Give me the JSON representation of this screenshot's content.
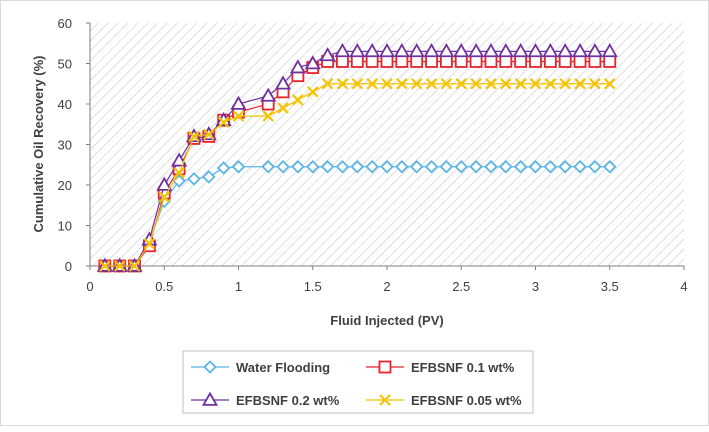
{
  "chart_data": {
    "type": "line",
    "xlabel": "Fluid Injected (PV)",
    "ylabel": "Cumulative Oil Recovery (%)",
    "xlim": [
      0,
      4
    ],
    "ylim": [
      0,
      60
    ],
    "x_ticks": [
      "0",
      "0.5",
      "1",
      "1.5",
      "2",
      "2.5",
      "3",
      "3.5",
      "4"
    ],
    "y_ticks": [
      "0",
      "10",
      "20",
      "30",
      "40",
      "50",
      "60"
    ],
    "grid": "none",
    "plot_background": "diagonal hatch",
    "legend_position": "bottom",
    "series": [
      {
        "name": "Water Flooding",
        "color": "#5ab4e5",
        "marker": "diamond",
        "x": [
          0.1,
          0.2,
          0.3,
          0.4,
          0.5,
          0.6,
          0.7,
          0.8,
          0.9,
          1.0,
          1.2,
          1.3,
          1.4,
          1.5,
          1.6,
          1.7,
          1.8,
          1.9,
          2.0,
          2.1,
          2.2,
          2.3,
          2.4,
          2.5,
          2.6,
          2.7,
          2.8,
          2.9,
          3.0,
          3.1,
          3.2,
          3.3,
          3.4,
          3.5
        ],
        "y": [
          0,
          0,
          0,
          6,
          16,
          21,
          21.5,
          22,
          24.2,
          24.5,
          24.5,
          24.5,
          24.5,
          24.5,
          24.5,
          24.5,
          24.5,
          24.5,
          24.5,
          24.5,
          24.5,
          24.5,
          24.5,
          24.5,
          24.5,
          24.5,
          24.5,
          24.5,
          24.5,
          24.5,
          24.5,
          24.5,
          24.5,
          24.5
        ]
      },
      {
        "name": "EFBSNF 0.1 wt%",
        "color": "#e8232a",
        "marker": "square",
        "x": [
          0.1,
          0.2,
          0.3,
          0.4,
          0.5,
          0.6,
          0.7,
          0.8,
          0.9,
          1.0,
          1.2,
          1.3,
          1.4,
          1.5,
          1.6,
          1.7,
          1.8,
          1.9,
          2.0,
          2.1,
          2.2,
          2.3,
          2.4,
          2.5,
          2.6,
          2.7,
          2.8,
          2.9,
          3.0,
          3.1,
          3.2,
          3.3,
          3.4,
          3.5
        ],
        "y": [
          0,
          0,
          0,
          5,
          18,
          24,
          31.5,
          32,
          36,
          38,
          40,
          43,
          47,
          49,
          50.5,
          50.5,
          50.5,
          50.5,
          50.5,
          50.5,
          50.5,
          50.5,
          50.5,
          50.5,
          50.5,
          50.5,
          50.5,
          50.5,
          50.5,
          50.5,
          50.5,
          50.5,
          50.5,
          50.5
        ]
      },
      {
        "name": "EFBSNF 0.2 wt%",
        "color": "#7030a0",
        "marker": "triangle",
        "x": [
          0.1,
          0.2,
          0.3,
          0.4,
          0.5,
          0.6,
          0.7,
          0.8,
          0.9,
          1.0,
          1.2,
          1.3,
          1.4,
          1.5,
          1.6,
          1.7,
          1.8,
          1.9,
          2.0,
          2.1,
          2.2,
          2.3,
          2.4,
          2.5,
          2.6,
          2.7,
          2.8,
          2.9,
          3.0,
          3.1,
          3.2,
          3.3,
          3.4,
          3.5
        ],
        "y": [
          0,
          0,
          0,
          6.5,
          20,
          26,
          32,
          32.5,
          36,
          40,
          42,
          45,
          49,
          50,
          52,
          53,
          53,
          53,
          53,
          53,
          53,
          53,
          53,
          53,
          53,
          53,
          53,
          53,
          53,
          53,
          53,
          53,
          53,
          53
        ]
      },
      {
        "name": "EFBSNF 0.05 wt%",
        "color": "#f5c400",
        "marker": "x",
        "x": [
          0.1,
          0.2,
          0.3,
          0.4,
          0.5,
          0.6,
          0.7,
          0.8,
          0.9,
          1.0,
          1.2,
          1.3,
          1.4,
          1.5,
          1.6,
          1.7,
          1.8,
          1.9,
          2.0,
          2.1,
          2.2,
          2.3,
          2.4,
          2.5,
          2.6,
          2.7,
          2.8,
          2.9,
          3.0,
          3.1,
          3.2,
          3.3,
          3.4,
          3.5
        ],
        "y": [
          0,
          0,
          0,
          5.5,
          17,
          23,
          32,
          32.5,
          35.5,
          37,
          37,
          39,
          41,
          43,
          45,
          45,
          45,
          45,
          45,
          45,
          45,
          45,
          45,
          45,
          45,
          45,
          45,
          45,
          45,
          45,
          45,
          45,
          45,
          45
        ]
      }
    ]
  }
}
